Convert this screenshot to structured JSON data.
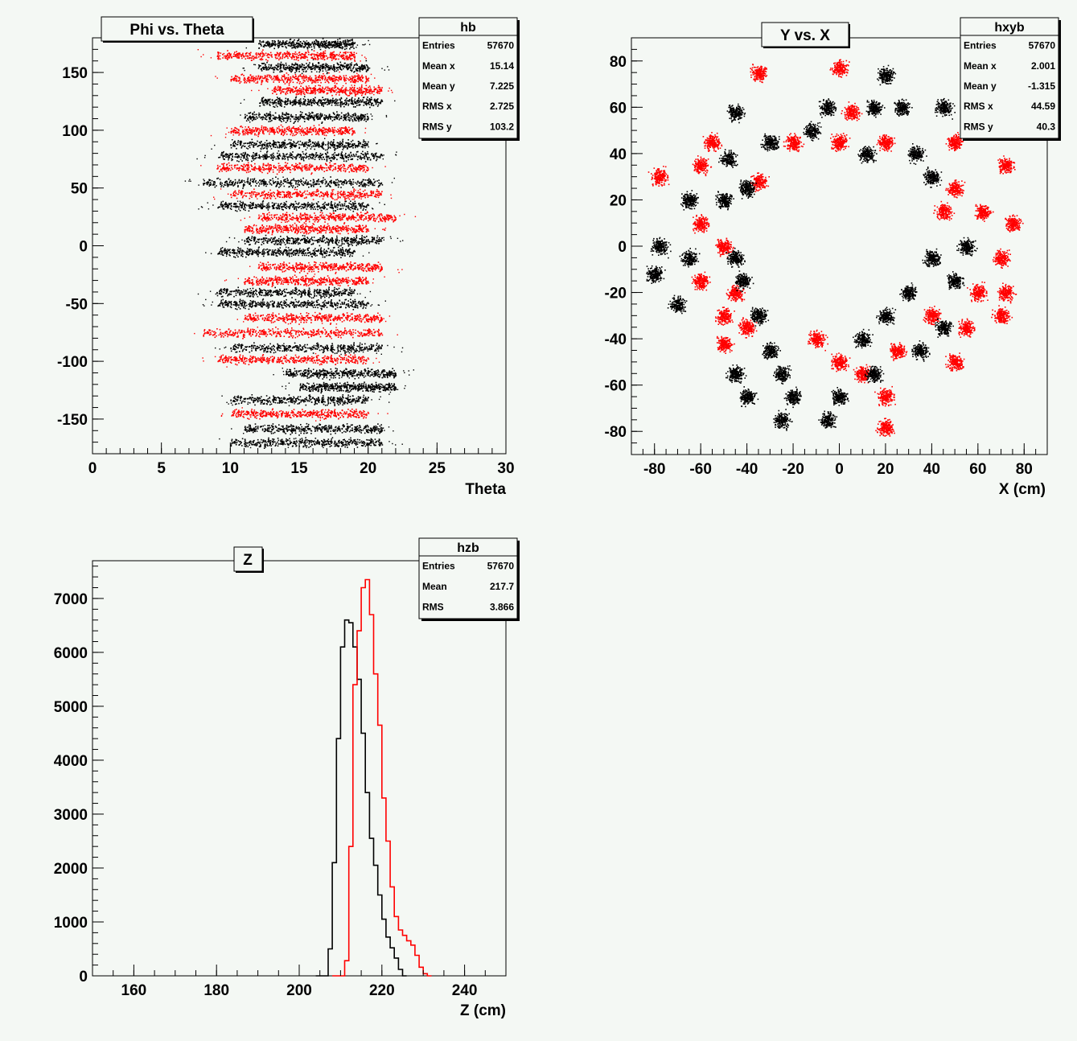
{
  "chart_data": [
    {
      "type": "scatter",
      "title": "Phi vs. Theta",
      "xlabel": "Theta",
      "ylabel": "",
      "xlim": [
        0,
        30
      ],
      "ylim": [
        -180,
        180
      ],
      "xticks": [
        0,
        5,
        10,
        15,
        20,
        25,
        30
      ],
      "yticks": [
        -150,
        -100,
        -50,
        0,
        50,
        100,
        150
      ],
      "series_colors": [
        "#000000",
        "#ff0000"
      ],
      "stats": {
        "name": "hb",
        "rows": [
          {
            "label": "Entries",
            "value": "57670"
          },
          {
            "label": "Mean x",
            "value": "15.14"
          },
          {
            "label": "Mean y",
            "value": "7.225"
          },
          {
            "label": "RMS x",
            "value": "2.725"
          },
          {
            "label": "RMS y",
            "value": "103.2"
          }
        ]
      },
      "bands": [
        {
          "phi": 175,
          "x0": 12,
          "x1": 19,
          "c": 0
        },
        {
          "phi": 165,
          "x0": 9,
          "x1": 19,
          "c": 1
        },
        {
          "phi": 155,
          "x0": 12,
          "x1": 20,
          "c": 0
        },
        {
          "phi": 145,
          "x0": 10,
          "x1": 20,
          "c": 1
        },
        {
          "phi": 135,
          "x0": 13,
          "x1": 21,
          "c": 1
        },
        {
          "phi": 125,
          "x0": 12,
          "x1": 21,
          "c": 0
        },
        {
          "phi": 112,
          "x0": 11,
          "x1": 20,
          "c": 0
        },
        {
          "phi": 100,
          "x0": 10,
          "x1": 19,
          "c": 1
        },
        {
          "phi": 88,
          "x0": 10,
          "x1": 20,
          "c": 0
        },
        {
          "phi": 78,
          "x0": 9,
          "x1": 21,
          "c": 0
        },
        {
          "phi": 68,
          "x0": 9,
          "x1": 20,
          "c": 1
        },
        {
          "phi": 55,
          "x0": 8,
          "x1": 21,
          "c": 0
        },
        {
          "phi": 45,
          "x0": 10,
          "x1": 21,
          "c": 1
        },
        {
          "phi": 35,
          "x0": 9,
          "x1": 20,
          "c": 0
        },
        {
          "phi": 25,
          "x0": 12,
          "x1": 22,
          "c": 1
        },
        {
          "phi": 15,
          "x0": 11,
          "x1": 20,
          "c": 1
        },
        {
          "phi": 5,
          "x0": 11,
          "x1": 21,
          "c": 0
        },
        {
          "phi": -5,
          "x0": 9,
          "x1": 19,
          "c": 0
        },
        {
          "phi": -18,
          "x0": 12,
          "x1": 21,
          "c": 1
        },
        {
          "phi": -30,
          "x0": 11,
          "x1": 20,
          "c": 1
        },
        {
          "phi": -40,
          "x0": 9,
          "x1": 19,
          "c": 0
        },
        {
          "phi": -50,
          "x0": 9,
          "x1": 20,
          "c": 0
        },
        {
          "phi": -62,
          "x0": 11,
          "x1": 21,
          "c": 1
        },
        {
          "phi": -75,
          "x0": 8,
          "x1": 21,
          "c": 1
        },
        {
          "phi": -88,
          "x0": 10,
          "x1": 21,
          "c": 0
        },
        {
          "phi": -98,
          "x0": 9,
          "x1": 20,
          "c": 1
        },
        {
          "phi": -110,
          "x0": 14,
          "x1": 22,
          "c": 0
        },
        {
          "phi": -122,
          "x0": 15,
          "x1": 22,
          "c": 0
        },
        {
          "phi": -133,
          "x0": 10,
          "x1": 20,
          "c": 0
        },
        {
          "phi": -145,
          "x0": 10,
          "x1": 20,
          "c": 1
        },
        {
          "phi": -158,
          "x0": 11,
          "x1": 21,
          "c": 0
        },
        {
          "phi": -170,
          "x0": 10,
          "x1": 21,
          "c": 0
        }
      ]
    },
    {
      "type": "scatter",
      "title": "Y vs. X",
      "xlabel": "X (cm)",
      "ylabel": "",
      "xlim": [
        -90,
        90
      ],
      "ylim": [
        -90,
        90
      ],
      "xticks": [
        -80,
        -60,
        -40,
        -20,
        0,
        20,
        40,
        60,
        80
      ],
      "yticks": [
        -80,
        -60,
        -40,
        -20,
        0,
        20,
        40,
        60,
        80
      ],
      "series_colors": [
        "#000000",
        "#ff0000"
      ],
      "stats": {
        "name": "hxyb",
        "rows": [
          {
            "label": "Entries",
            "value": "57670"
          },
          {
            "label": "Mean x",
            "value": "2.001"
          },
          {
            "label": "Mean y",
            "value": "-1.315"
          },
          {
            "label": "RMS x",
            "value": "44.59"
          },
          {
            "label": "RMS y",
            "value": "40.3"
          }
        ]
      },
      "clusters": [
        {
          "x": 0,
          "y": 77,
          "c": 1
        },
        {
          "x": 20,
          "y": 74,
          "c": 0
        },
        {
          "x": -35,
          "y": 75,
          "c": 1
        },
        {
          "x": -5,
          "y": 60,
          "c": 0
        },
        {
          "x": 5,
          "y": 58,
          "c": 1
        },
        {
          "x": 15,
          "y": 60,
          "c": 0
        },
        {
          "x": 27,
          "y": 60,
          "c": 0
        },
        {
          "x": 45,
          "y": 60,
          "c": 0
        },
        {
          "x": 60,
          "y": 55,
          "c": 1
        },
        {
          "x": -45,
          "y": 58,
          "c": 0
        },
        {
          "x": -55,
          "y": 45,
          "c": 1
        },
        {
          "x": -30,
          "y": 45,
          "c": 0
        },
        {
          "x": -20,
          "y": 45,
          "c": 1
        },
        {
          "x": -12,
          "y": 50,
          "c": 0
        },
        {
          "x": 0,
          "y": 45,
          "c": 1
        },
        {
          "x": 20,
          "y": 45,
          "c": 1
        },
        {
          "x": 12,
          "y": 40,
          "c": 0
        },
        {
          "x": 33,
          "y": 40,
          "c": 0
        },
        {
          "x": 50,
          "y": 45,
          "c": 1
        },
        {
          "x": 72,
          "y": 35,
          "c": 1
        },
        {
          "x": -78,
          "y": 30,
          "c": 1
        },
        {
          "x": -60,
          "y": 35,
          "c": 1
        },
        {
          "x": -48,
          "y": 38,
          "c": 0
        },
        {
          "x": -35,
          "y": 28,
          "c": 1
        },
        {
          "x": -40,
          "y": 25,
          "c": 0
        },
        {
          "x": 40,
          "y": 30,
          "c": 0
        },
        {
          "x": 50,
          "y": 25,
          "c": 1
        },
        {
          "x": -65,
          "y": 20,
          "c": 0
        },
        {
          "x": -50,
          "y": 20,
          "c": 0
        },
        {
          "x": -60,
          "y": 10,
          "c": 1
        },
        {
          "x": 45,
          "y": 15,
          "c": 1
        },
        {
          "x": 62,
          "y": 15,
          "c": 1
        },
        {
          "x": 75,
          "y": 10,
          "c": 1
        },
        {
          "x": -78,
          "y": 0,
          "c": 0
        },
        {
          "x": -65,
          "y": -5,
          "c": 0
        },
        {
          "x": -50,
          "y": 0,
          "c": 1
        },
        {
          "x": -45,
          "y": -5,
          "c": 0
        },
        {
          "x": 40,
          "y": -5,
          "c": 0
        },
        {
          "x": 55,
          "y": 0,
          "c": 0
        },
        {
          "x": 70,
          "y": -5,
          "c": 1
        },
        {
          "x": -80,
          "y": -12,
          "c": 0
        },
        {
          "x": -60,
          "y": -15,
          "c": 1
        },
        {
          "x": -45,
          "y": -20,
          "c": 1
        },
        {
          "x": -42,
          "y": -15,
          "c": 0
        },
        {
          "x": 30,
          "y": -20,
          "c": 0
        },
        {
          "x": 50,
          "y": -15,
          "c": 0
        },
        {
          "x": 60,
          "y": -20,
          "c": 1
        },
        {
          "x": 72,
          "y": -20,
          "c": 1
        },
        {
          "x": -70,
          "y": -25,
          "c": 0
        },
        {
          "x": -50,
          "y": -30,
          "c": 1
        },
        {
          "x": -35,
          "y": -30,
          "c": 0
        },
        {
          "x": -40,
          "y": -35,
          "c": 1
        },
        {
          "x": 20,
          "y": -30,
          "c": 0
        },
        {
          "x": 40,
          "y": -30,
          "c": 1
        },
        {
          "x": 45,
          "y": -35,
          "c": 0
        },
        {
          "x": 55,
          "y": -35,
          "c": 1
        },
        {
          "x": 70,
          "y": -30,
          "c": 1
        },
        {
          "x": -50,
          "y": -42,
          "c": 1
        },
        {
          "x": -30,
          "y": -45,
          "c": 0
        },
        {
          "x": -10,
          "y": -40,
          "c": 1
        },
        {
          "x": 10,
          "y": -40,
          "c": 0
        },
        {
          "x": 25,
          "y": -45,
          "c": 1
        },
        {
          "x": 35,
          "y": -45,
          "c": 0
        },
        {
          "x": 50,
          "y": -50,
          "c": 1
        },
        {
          "x": -45,
          "y": -55,
          "c": 0
        },
        {
          "x": -25,
          "y": -55,
          "c": 0
        },
        {
          "x": 0,
          "y": -50,
          "c": 1
        },
        {
          "x": 10,
          "y": -55,
          "c": 1
        },
        {
          "x": 15,
          "y": -55,
          "c": 0
        },
        {
          "x": -40,
          "y": -65,
          "c": 0
        },
        {
          "x": -20,
          "y": -65,
          "c": 0
        },
        {
          "x": 0,
          "y": -65,
          "c": 0
        },
        {
          "x": 20,
          "y": -65,
          "c": 1
        },
        {
          "x": -25,
          "y": -75,
          "c": 0
        },
        {
          "x": -5,
          "y": -75,
          "c": 0
        },
        {
          "x": 20,
          "y": -78,
          "c": 1
        }
      ]
    },
    {
      "type": "line",
      "title": "Z",
      "xlabel": "Z (cm)",
      "ylabel": "",
      "xlim": [
        150,
        250
      ],
      "ylim": [
        0,
        7700
      ],
      "xticks": [
        160,
        180,
        200,
        220,
        240
      ],
      "yticks": [
        0,
        1000,
        2000,
        3000,
        4000,
        5000,
        6000,
        7000
      ],
      "stats": {
        "name": "hzb",
        "rows": [
          {
            "label": "Entries",
            "value": "57670"
          },
          {
            "label": "Mean",
            "value": "217.7"
          },
          {
            "label": "RMS",
            "value": "3.866"
          }
        ]
      },
      "series": [
        {
          "color": "#000000",
          "x0": 207,
          "binwidth": 1,
          "values": [
            500,
            2100,
            4400,
            6100,
            6600,
            6550,
            6100,
            5500,
            4500,
            3400,
            2550,
            2050,
            1500,
            1050,
            720,
            520,
            330,
            120,
            0
          ]
        },
        {
          "color": "#ff0000",
          "x0": 211,
          "binwidth": 1,
          "values": [
            280,
            2400,
            5400,
            6400,
            7200,
            7350,
            6700,
            5600,
            4650,
            3300,
            2500,
            1650,
            1100,
            850,
            750,
            650,
            570,
            380,
            160,
            40,
            0
          ]
        }
      ]
    }
  ]
}
